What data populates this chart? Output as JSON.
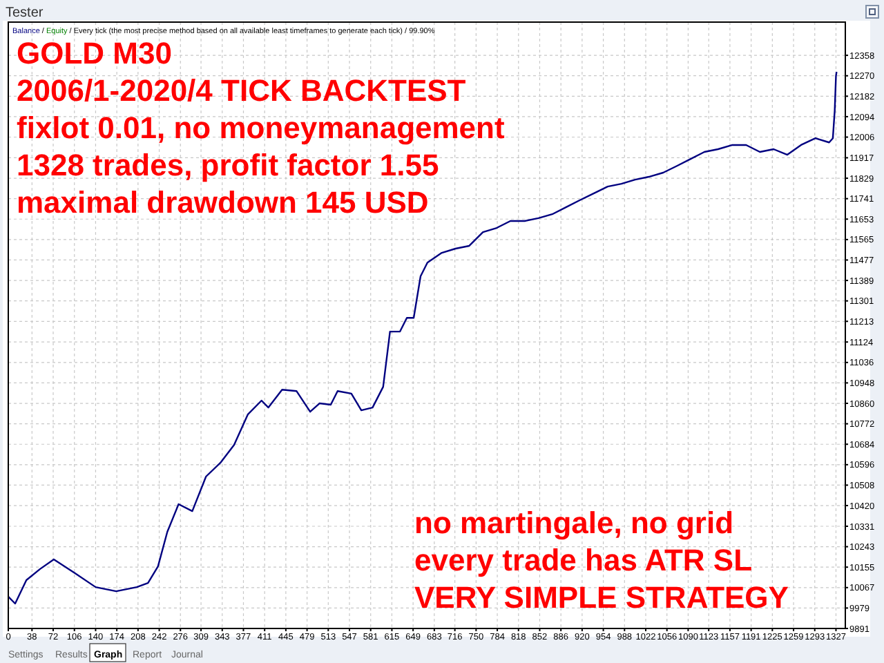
{
  "chart_data": {
    "type": "line",
    "title": "GOLD M30",
    "annotations": [
      "Tester",
      "/ Every tick (the most precise method based on all available least timeframes to generate each tick) / 99.90%",
      "2006/1-2020/4 TICK BACKTEST",
      "fixlot 0.01, no moneymanagement",
      "1328 trades, profit factor 1.55",
      "maximal drawdown 145 USD",
      "no martingale, no grid",
      "every trade has ATR SL",
      "VERY SIMPLE STRATEGY",
      "Settings",
      "Results",
      "Graph",
      "Report",
      "Journal",
      "/"
    ],
    "x": [
      0,
      11,
      29,
      51,
      73,
      107,
      140,
      173,
      206,
      224,
      240,
      255,
      273,
      295,
      317,
      340,
      362,
      384,
      406,
      417,
      439,
      462,
      484,
      499,
      517,
      528,
      550,
      566,
      584,
      601,
      612,
      628,
      639,
      650,
      661,
      672,
      695,
      717,
      739,
      761,
      783,
      805,
      828,
      850,
      872,
      894,
      916,
      939,
      961,
      983,
      1005,
      1027,
      1050,
      1072,
      1094,
      1116,
      1138,
      1161,
      1183,
      1205,
      1227,
      1249,
      1271,
      1294,
      1316,
      1322,
      1325,
      1327,
      1328
    ],
    "series": [
      {
        "name": "Balance",
        "color": "#000080",
        "values": [
          10028,
          9998,
          10099,
          10147,
          10188,
          10129,
          10069,
          10051,
          10069,
          10087,
          10158,
          10307,
          10426,
          10396,
          10545,
          10604,
          10681,
          10812,
          10872,
          10842,
          10919,
          10913,
          10824,
          10860,
          10854,
          10913,
          10902,
          10830,
          10842,
          10931,
          11169,
          11169,
          11228,
          11228,
          11407,
          11466,
          11508,
          11526,
          11538,
          11597,
          11615,
          11645,
          11645,
          11657,
          11674,
          11704,
          11734,
          11764,
          11793,
          11805,
          11823,
          11835,
          11853,
          11882,
          11912,
          11942,
          11954,
          11972,
          11972,
          11942,
          11954,
          11930,
          11972,
          12001,
          11983,
          12001,
          12120,
          12269,
          12287
        ]
      },
      {
        "name": "Equity",
        "color": "#008000",
        "values": [
          null,
          null,
          null,
          null,
          null,
          null,
          null,
          null,
          null,
          null,
          null,
          null,
          null,
          null,
          null,
          null,
          null,
          null,
          null,
          null,
          null,
          null,
          null,
          null,
          null,
          null,
          null,
          null,
          null,
          null,
          null,
          null,
          null,
          null,
          null,
          null,
          null,
          null,
          null,
          null,
          null,
          null,
          null,
          null,
          null,
          null,
          null,
          null,
          null,
          null,
          null,
          null,
          null,
          null,
          null,
          null,
          null,
          null,
          null,
          null,
          null,
          null,
          null,
          null,
          null,
          null,
          null,
          null,
          null
        ]
      }
    ],
    "xlim": [
      0,
      1342
    ],
    "ylim": [
      9891,
      12501
    ],
    "xticks": [
      0,
      38,
      72,
      106,
      140,
      174,
      208,
      242,
      276,
      309,
      343,
      377,
      411,
      445,
      479,
      513,
      547,
      581,
      615,
      649,
      683,
      716,
      750,
      784,
      818,
      852,
      886,
      920,
      954,
      988,
      1022,
      1056,
      1090,
      1123,
      1157,
      1191,
      1225,
      1259,
      1293,
      1327
    ],
    "yticks": [
      9891,
      9979,
      10067,
      10155,
      10243,
      10331,
      10420,
      10508,
      10596,
      10684,
      10772,
      10860,
      10948,
      11036,
      11124,
      11213,
      11301,
      11389,
      11477,
      11565,
      11653,
      11741,
      11829,
      11917,
      12006,
      12094,
      12182,
      12270,
      12358
    ],
    "grid": true,
    "legend": "top left"
  }
}
